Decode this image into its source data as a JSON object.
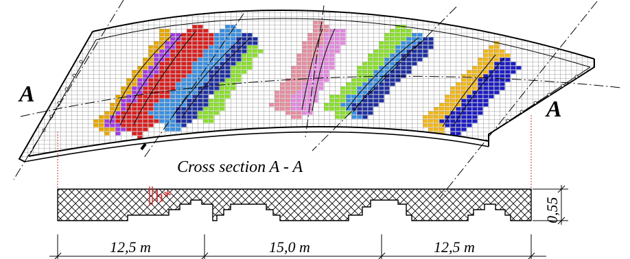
{
  "section_label_left": "A",
  "section_label_right": "A",
  "cross_section_title": "Cross section A - A",
  "depth_marker": "h*",
  "height_label": "0,55",
  "spans": [
    {
      "label": "12,5 m"
    },
    {
      "label": "15,0 m"
    },
    {
      "label": "12,5 m"
    }
  ],
  "colors": {
    "mesh": "#333333",
    "red_marker": "#d62b2b",
    "damage": [
      "#e8a800",
      "#a23be0",
      "#d81f1f",
      "#3a8fe0",
      "#1e2fa0",
      "#8be02e",
      "#e78fa0",
      "#e48be0",
      "#f2b81a",
      "#1c1cc2"
    ]
  }
}
